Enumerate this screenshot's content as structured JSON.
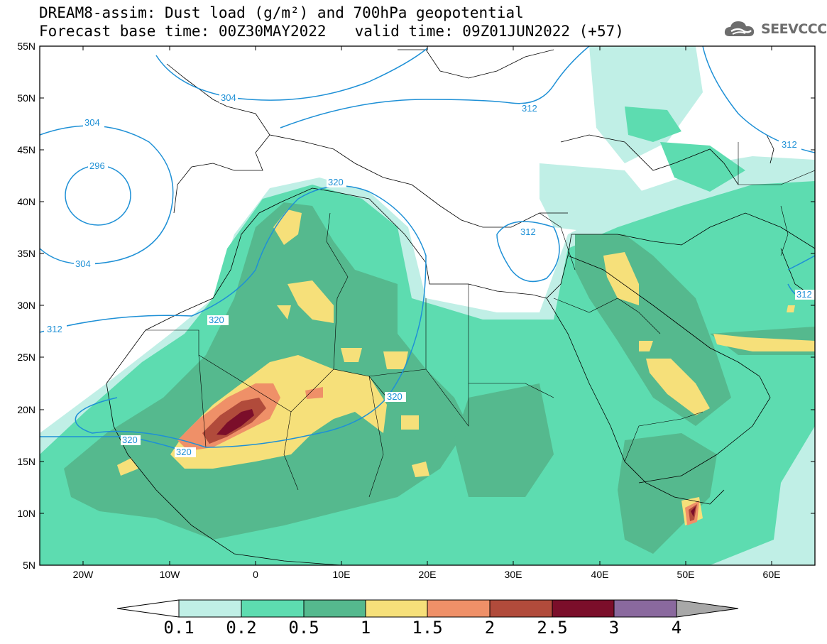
{
  "header": {
    "line1": "DREAM8-assim: Dust load (g/m²) and 700hPa geopotential",
    "base_time": "Forecast base time: 00Z30MAY2022",
    "valid_time": "valid time: 09Z01JUN2022 (+57)",
    "logo": "SEEVCCC"
  },
  "axes": {
    "lat_labels": [
      "55N",
      "50N",
      "45N",
      "40N",
      "35N",
      "30N",
      "25N",
      "20N",
      "15N",
      "10N",
      "5N"
    ],
    "lon_labels": [
      "20W",
      "10W",
      "0",
      "10E",
      "20E",
      "30E",
      "40E",
      "50E",
      "60E"
    ]
  },
  "contours": {
    "labels": [
      "304",
      "304",
      "296",
      "304",
      "312",
      "320",
      "320",
      "320",
      "320",
      "312",
      "312",
      "312",
      "312"
    ]
  },
  "colorbar": {
    "tick_labels": [
      "0.1",
      "0.2",
      "0.5",
      "1",
      "1.5",
      "2",
      "2.5",
      "3",
      "4"
    ],
    "colors": [
      "#c0efe6",
      "#5ddcb0",
      "#55b98e",
      "#f6e07a",
      "#ef9068",
      "#b14b3b",
      "#7b0e2a",
      "#8a699e",
      "#a8a8a8"
    ]
  },
  "map_colors": {
    "land_line": "#000000",
    "contour_line": "#1e90d6",
    "dust_01": "#c0efe6",
    "dust_02": "#5ddcb0",
    "dust_05": "#55b98e",
    "dust_1": "#f6e07a",
    "dust_15": "#ef9068",
    "dust_2": "#b14b3b",
    "dust_25": "#7b0e2a"
  }
}
